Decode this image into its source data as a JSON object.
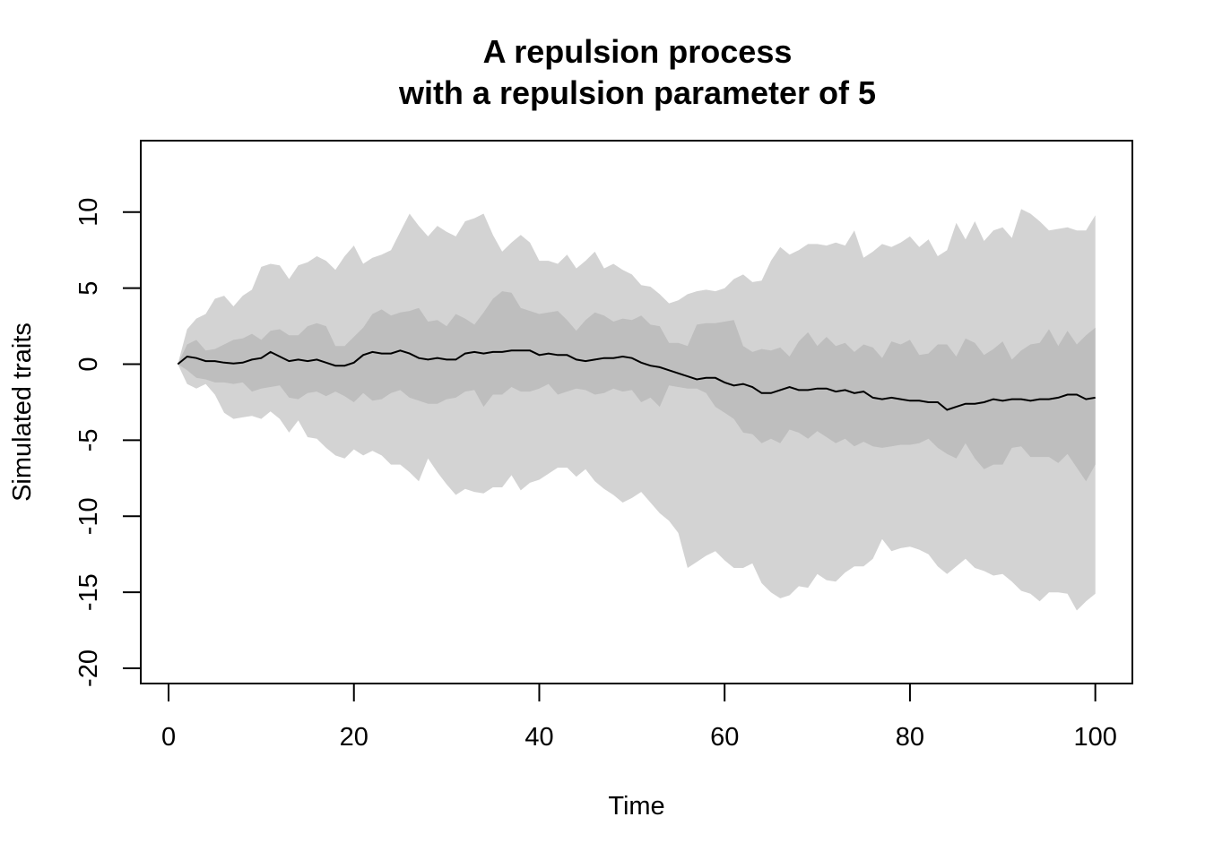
{
  "chart_data": {
    "type": "area",
    "title": [
      "A repulsion process",
      "with a repulsion parameter of 5"
    ],
    "xlabel": "Time",
    "ylabel": "Simulated traits",
    "xlim": [
      -3,
      104
    ],
    "ylim": [
      -21,
      14.7
    ],
    "xticks": [
      0,
      20,
      40,
      60,
      80,
      100
    ],
    "yticks": [
      10,
      5,
      0,
      -5,
      -10,
      -15,
      -20
    ],
    "xtick_labels": [
      "0",
      "20",
      "40",
      "60",
      "80",
      "100"
    ],
    "ytick_labels": [
      "10",
      "5",
      "0",
      "-5",
      "-10",
      "-15",
      "-20"
    ],
    "grid": false,
    "legend": "none",
    "colors": {
      "outer_band": "#d3d3d3",
      "inner_band": "#bebebe",
      "median_line": "#000000",
      "frame": "#000000"
    },
    "x": [
      1,
      2,
      3,
      4,
      5,
      6,
      7,
      8,
      9,
      10,
      11,
      12,
      13,
      14,
      15,
      16,
      17,
      18,
      19,
      20,
      21,
      22,
      23,
      24,
      25,
      26,
      27,
      28,
      29,
      30,
      31,
      32,
      33,
      34,
      35,
      36,
      37,
      38,
      39,
      40,
      41,
      42,
      43,
      44,
      45,
      46,
      47,
      48,
      49,
      50,
      51,
      52,
      53,
      54,
      55,
      56,
      57,
      58,
      59,
      60,
      61,
      62,
      63,
      64,
      65,
      66,
      67,
      68,
      69,
      70,
      71,
      72,
      73,
      74,
      75,
      76,
      77,
      78,
      79,
      80,
      81,
      82,
      83,
      84,
      85,
      86,
      87,
      88,
      89,
      90,
      91,
      92,
      93,
      94,
      95,
      96,
      97,
      98,
      99,
      100
    ],
    "series": [
      {
        "role": "outer_upper",
        "values": [
          0,
          2.3,
          3,
          3.3,
          4.3,
          4.5,
          3.8,
          4.5,
          4.9,
          6.4,
          6.6,
          6.5,
          5.6,
          6.5,
          6.7,
          7.1,
          6.8,
          6.2,
          7.1,
          7.8,
          6.6,
          7,
          7.2,
          7.5,
          8.7,
          9.9,
          9.1,
          8.4,
          9.1,
          8.7,
          8.4,
          9.4,
          9.6,
          9.9,
          8.5,
          7.4,
          8,
          8.5,
          8,
          6.8,
          6.8,
          6.6,
          7.2,
          6.3,
          6.8,
          7.4,
          6.3,
          6.6,
          6.2,
          5.9,
          5.2,
          5.1,
          4.6,
          4,
          4.2,
          4.6,
          4.8,
          4.9,
          4.8,
          5,
          5.6,
          5.9,
          5.4,
          5.5,
          6.8,
          7.7,
          7.2,
          7.5,
          7.9,
          7.9,
          7.8,
          8,
          7.8,
          8.8,
          7,
          7.4,
          7.9,
          7.7,
          8,
          8.4,
          7.7,
          8.2,
          7.1,
          7.5,
          9.3,
          8.2,
          9.4,
          8.1,
          8.8,
          9,
          8.3,
          10.2,
          9.9,
          9.4,
          8.8,
          8.9,
          9,
          8.8,
          8.8,
          9.8
        ]
      },
      {
        "role": "inner_upper",
        "values": [
          0,
          1.3,
          1.6,
          0.9,
          1,
          1.3,
          1.6,
          1.7,
          2,
          1.6,
          2.2,
          2.3,
          1.9,
          1.9,
          2.5,
          2.7,
          2.5,
          1.2,
          1.2,
          1.8,
          2.4,
          3.3,
          3.6,
          3.2,
          3.4,
          3.5,
          3.7,
          2.8,
          2.9,
          2.5,
          3.3,
          3,
          2.6,
          3.4,
          4.3,
          4.8,
          4.7,
          3.7,
          3.5,
          3.3,
          3.4,
          3.5,
          2.9,
          2.2,
          2.9,
          3.4,
          3.2,
          2.8,
          3,
          2.9,
          3.2,
          2.6,
          2.5,
          1.4,
          1.4,
          1.2,
          2.6,
          2.7,
          2.7,
          2.8,
          2.9,
          1.2,
          0.8,
          1,
          0.9,
          1.1,
          0.5,
          1.5,
          2.1,
          1.2,
          1.8,
          1.2,
          1.4,
          0.8,
          1.3,
          1.1,
          0.4,
          1.5,
          1.3,
          1.6,
          0.6,
          0.7,
          1.3,
          1.3,
          0.5,
          1.7,
          1.4,
          0.6,
          1,
          1.5,
          0.3,
          0.9,
          1.3,
          1.4,
          2.3,
          1.2,
          2.2,
          1.3,
          1.9,
          2.4
        ]
      },
      {
        "role": "median",
        "values": [
          0,
          0.5,
          0.4,
          0.2,
          0.2,
          0.1,
          0.05,
          0.1,
          0.3,
          0.4,
          0.8,
          0.5,
          0.2,
          0.3,
          0.2,
          0.3,
          0.1,
          -0.1,
          -0.1,
          0.1,
          0.6,
          0.8,
          0.7,
          0.7,
          0.9,
          0.7,
          0.4,
          0.3,
          0.4,
          0.3,
          0.3,
          0.7,
          0.8,
          0.7,
          0.8,
          0.8,
          0.9,
          0.9,
          0.9,
          0.6,
          0.7,
          0.6,
          0.6,
          0.3,
          0.2,
          0.3,
          0.4,
          0.4,
          0.5,
          0.4,
          0.1,
          -0.1,
          -0.2,
          -0.4,
          -0.6,
          -0.8,
          -1,
          -0.9,
          -0.9,
          -1.2,
          -1.4,
          -1.3,
          -1.5,
          -1.9,
          -1.9,
          -1.7,
          -1.5,
          -1.7,
          -1.7,
          -1.6,
          -1.6,
          -1.8,
          -1.7,
          -1.9,
          -1.8,
          -2.2,
          -2.3,
          -2.2,
          -2.3,
          -2.4,
          -2.4,
          -2.5,
          -2.5,
          -3,
          -2.8,
          -2.6,
          -2.6,
          -2.5,
          -2.3,
          -2.4,
          -2.3,
          -2.3,
          -2.4,
          -2.3,
          -2.3,
          -2.2,
          -2,
          -2,
          -2.3,
          -2.2
        ]
      },
      {
        "role": "inner_lower",
        "values": [
          0,
          -0.4,
          -0.9,
          -1,
          -1.2,
          -1.2,
          -1.3,
          -1.2,
          -1.8,
          -1.6,
          -1.5,
          -1.4,
          -2.2,
          -2.3,
          -1.9,
          -1.8,
          -2.1,
          -1.8,
          -2.1,
          -2.5,
          -1.9,
          -2.4,
          -2.3,
          -1.9,
          -1.7,
          -2.2,
          -2.4,
          -2.6,
          -2.6,
          -2.3,
          -2.2,
          -1.8,
          -1.7,
          -2.8,
          -2,
          -2,
          -1.5,
          -1.8,
          -1.8,
          -1.6,
          -1.3,
          -2,
          -1.8,
          -1.6,
          -1.7,
          -2,
          -1.9,
          -1.6,
          -1.8,
          -1.7,
          -2.5,
          -2.2,
          -2.8,
          -1.4,
          -1.5,
          -1.6,
          -1.6,
          -1.9,
          -2.8,
          -3.2,
          -3.6,
          -4.5,
          -4.6,
          -5.2,
          -4.9,
          -5.2,
          -4.3,
          -4.5,
          -4.9,
          -4.4,
          -4.8,
          -5.2,
          -4.9,
          -5.4,
          -5.1,
          -5.4,
          -5.5,
          -5.4,
          -5.3,
          -5.3,
          -5.2,
          -4.9,
          -5.5,
          -5.9,
          -6.2,
          -5.2,
          -6.2,
          -6.9,
          -6.6,
          -6.6,
          -5.5,
          -5.4,
          -6.1,
          -6.1,
          -6.1,
          -6.5,
          -5.9,
          -6.8,
          -7.7,
          -6.6
        ]
      },
      {
        "role": "outer_lower",
        "values": [
          0,
          -1.3,
          -1.6,
          -1.3,
          -2,
          -3.2,
          -3.6,
          -3.5,
          -3.4,
          -3.6,
          -3.1,
          -3.6,
          -4.5,
          -3.7,
          -4.8,
          -4.9,
          -5.5,
          -6,
          -6.2,
          -5.6,
          -6,
          -5.7,
          -6,
          -6.6,
          -6.6,
          -7.1,
          -7.7,
          -6.2,
          -7.1,
          -7.9,
          -8.6,
          -8.2,
          -8.4,
          -8.5,
          -8.1,
          -8.1,
          -7.3,
          -8.3,
          -7.8,
          -7.6,
          -7.2,
          -6.8,
          -6.8,
          -7.4,
          -6.9,
          -7.7,
          -8.2,
          -8.6,
          -9.1,
          -8.8,
          -8.4,
          -9.1,
          -9.8,
          -10.3,
          -11.1,
          -13.4,
          -13,
          -12.6,
          -12.3,
          -12.9,
          -13.4,
          -13.4,
          -13.1,
          -14.4,
          -15,
          -15.4,
          -15.2,
          -14.6,
          -14.7,
          -13.8,
          -14.2,
          -14.3,
          -13.7,
          -13.3,
          -13.3,
          -12.8,
          -11.5,
          -12.3,
          -12.1,
          -12,
          -12.2,
          -12.5,
          -13.3,
          -13.8,
          -13.3,
          -12.8,
          -13.4,
          -13.6,
          -13.9,
          -13.8,
          -14.3,
          -14.9,
          -15.1,
          -15.6,
          -15,
          -15,
          -15.1,
          -16.2,
          -15.6,
          -15.1
        ]
      }
    ]
  }
}
